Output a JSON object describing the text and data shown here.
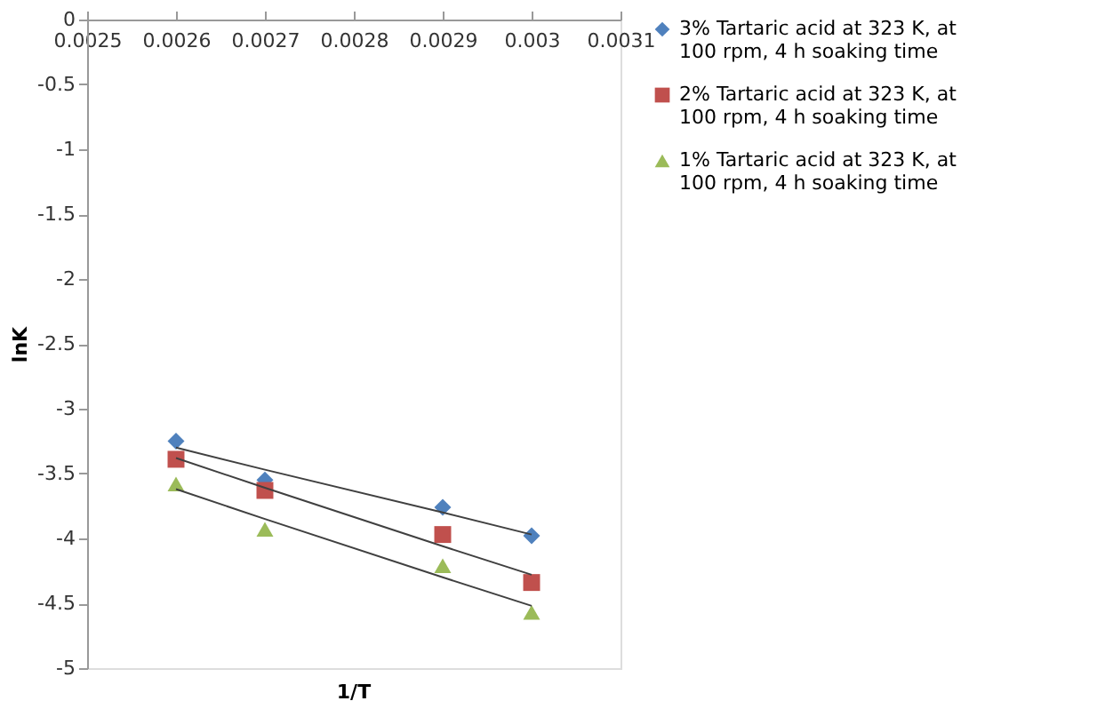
{
  "chart_data": {
    "type": "scatter",
    "xlabel": "1/T",
    "ylabel": "lnK",
    "x": [
      0.0026,
      0.0027,
      0.0029,
      0.003
    ],
    "xlim": [
      0.0025,
      0.0031
    ],
    "xticks": [
      0.0025,
      0.0026,
      0.0027,
      0.0028,
      0.0029,
      0.003,
      0.0031
    ],
    "ylim": [
      -5,
      0
    ],
    "yticks": [
      0,
      -0.5,
      -1,
      -1.5,
      -2,
      -2.5,
      -3,
      -3.5,
      -4,
      -4.5,
      -5
    ],
    "grid": false,
    "legend": "right",
    "series": [
      {
        "name": "3% Tartaric acid at 323 K, at 100 rpm, 4 h soaking time",
        "color": "#4f81bd",
        "marker": "diamond",
        "values": [
          -3.25,
          -3.55,
          -3.76,
          -3.98
        ]
      },
      {
        "name": "2% Tartaric acid at 323 K, at 100 rpm, 4 h soaking time",
        "color": "#c0504d",
        "marker": "square",
        "values": [
          -3.39,
          -3.63,
          -3.97,
          -4.34
        ]
      },
      {
        "name": "1% Tartaric acid at 323 K, at 100 rpm, 4 h soaking time",
        "color": "#9bbb59",
        "marker": "triangle",
        "values": [
          -3.58,
          -3.93,
          -4.21,
          -4.57
        ]
      },
      {
        "type": "line",
        "color": "#404040",
        "values": [
          -3.3,
          -3.47,
          -3.8,
          -3.97
        ]
      },
      {
        "type": "line",
        "color": "#404040",
        "values": [
          -3.38,
          -3.61,
          -4.06,
          -4.28
        ]
      },
      {
        "type": "line",
        "color": "#404040",
        "values": [
          -3.62,
          -3.85,
          -4.3,
          -4.52
        ]
      }
    ]
  }
}
